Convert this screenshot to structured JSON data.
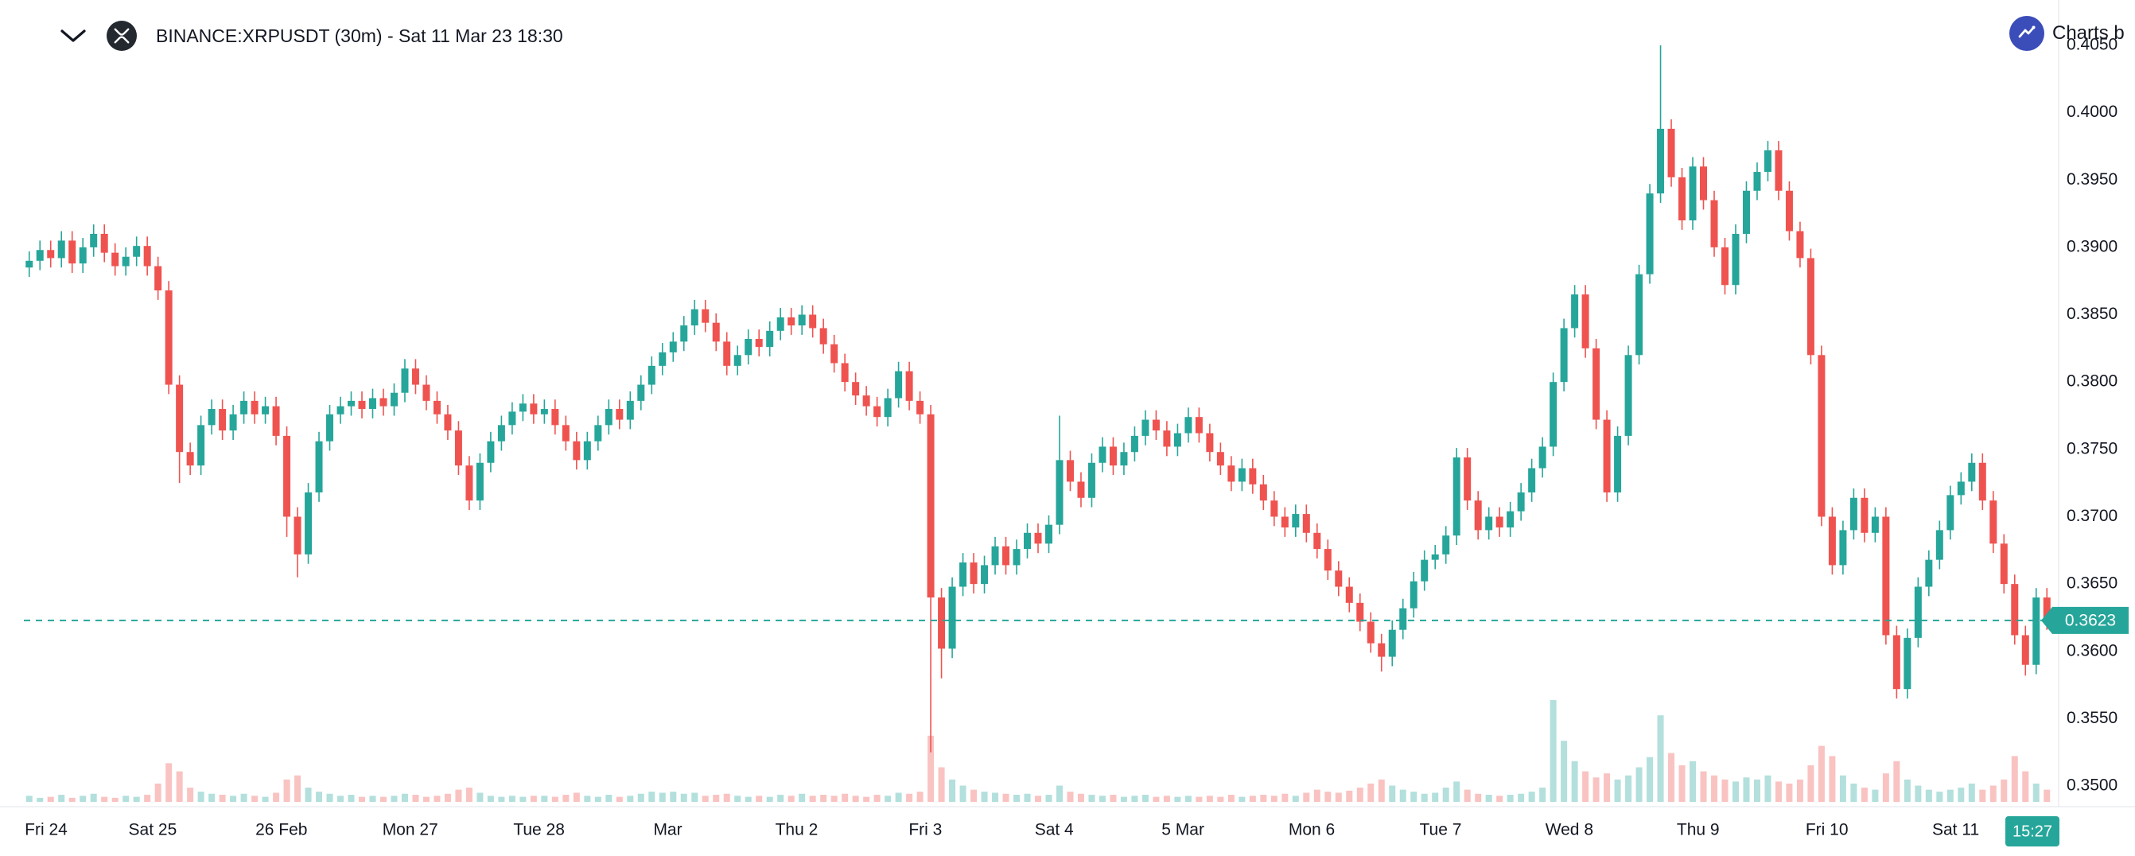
{
  "header": {
    "symbol_title": "BINANCE:XRPUSDT (30m) - Sat 11 Mar 23 18:30",
    "attribution": {
      "label": "Charts b"
    }
  },
  "price_tag": {
    "label": "0.3623"
  },
  "countdown": {
    "label": "15:27"
  },
  "colors": {
    "up": "#26a69a",
    "down": "#ef5350",
    "volume_up": "rgba(38,166,154,0.35)",
    "volume_down": "rgba(239,83,80,0.35)",
    "price_line": "#26a69a",
    "price_tag_bg": "#26a69a",
    "countdown_bg": "#26a69a",
    "axis_text": "#131722",
    "separator": "#e0e3eb",
    "attribution_logo_bg": "#3b4db9",
    "symbol_logo_bg": "#23292f"
  },
  "chart_data": {
    "type": "candlestick",
    "title": "BINANCE:XRPUSDT (30m) - Sat 11 Mar 23 18:30",
    "symbol": "BINANCE:XRPUSDT",
    "interval_label": "30m",
    "last_price": 0.3623,
    "grid": false,
    "note": "price path estimated from pixels; series downsampled to ~2h candles over Feb 24 - Mar 11",
    "y_axis": {
      "min": 0.349,
      "max": 0.406,
      "tick_step": 0.005,
      "ticks": [
        "0.4050",
        "0.4000",
        "0.3950",
        "0.3900",
        "0.3850",
        "0.3800",
        "0.3750",
        "0.3700",
        "0.3650",
        "0.3600",
        "0.3550",
        "0.3500"
      ]
    },
    "x_axis": {
      "day_labels": [
        "Fri 24",
        "Sat 25",
        "26 Feb",
        "Mon 27",
        "Tue 28",
        "Mar",
        "Thu 2",
        "Fri 3",
        "Sat 4",
        "5 Mar",
        "Mon 6",
        "Tue 7",
        "Wed 8",
        "Thu 9",
        "Fri 10",
        "Sat 11"
      ],
      "candles_per_label": 12
    },
    "price_line": {
      "value": 0.3623,
      "style": "dashed"
    },
    "series": {
      "first_open": 0.3885,
      "default_wick": 0.0007,
      "closes": [
        0.389,
        0.3898,
        0.3892,
        0.3905,
        0.3888,
        0.39,
        0.391,
        0.3896,
        0.3886,
        0.3893,
        0.3901,
        0.3886,
        0.3868,
        0.3798,
        0.3748,
        0.3738,
        0.3768,
        0.378,
        0.3764,
        0.3776,
        0.3786,
        0.3776,
        0.3782,
        0.376,
        0.37,
        0.3672,
        0.3718,
        0.3756,
        0.3776,
        0.3782,
        0.3786,
        0.378,
        0.3788,
        0.3782,
        0.3792,
        0.381,
        0.3798,
        0.3786,
        0.3776,
        0.3764,
        0.3738,
        0.3712,
        0.374,
        0.3756,
        0.3768,
        0.3778,
        0.3784,
        0.3776,
        0.378,
        0.3768,
        0.3756,
        0.3742,
        0.3756,
        0.3768,
        0.378,
        0.3772,
        0.3786,
        0.3798,
        0.3812,
        0.3822,
        0.383,
        0.3842,
        0.3854,
        0.3844,
        0.383,
        0.3812,
        0.382,
        0.3832,
        0.3826,
        0.3838,
        0.3848,
        0.3842,
        0.385,
        0.384,
        0.3828,
        0.3814,
        0.38,
        0.379,
        0.3782,
        0.3774,
        0.3788,
        0.3808,
        0.3786,
        0.3776,
        0.364,
        0.3602,
        0.3648,
        0.3666,
        0.365,
        0.3664,
        0.3678,
        0.3664,
        0.3676,
        0.3688,
        0.368,
        0.3694,
        0.3742,
        0.3726,
        0.3714,
        0.374,
        0.3752,
        0.3738,
        0.3748,
        0.376,
        0.3772,
        0.3764,
        0.3752,
        0.3762,
        0.3774,
        0.3762,
        0.3748,
        0.3738,
        0.3726,
        0.3736,
        0.3724,
        0.3712,
        0.37,
        0.3692,
        0.3702,
        0.3688,
        0.3676,
        0.366,
        0.3648,
        0.3636,
        0.3622,
        0.3606,
        0.3596,
        0.3616,
        0.3632,
        0.3652,
        0.3668,
        0.3672,
        0.3686,
        0.3744,
        0.3712,
        0.369,
        0.37,
        0.3692,
        0.3704,
        0.3718,
        0.3736,
        0.3752,
        0.38,
        0.384,
        0.3865,
        0.3825,
        0.3772,
        0.3718,
        0.376,
        0.382,
        0.388,
        0.394,
        0.3988,
        0.3952,
        0.392,
        0.396,
        0.3935,
        0.39,
        0.3872,
        0.391,
        0.3942,
        0.3956,
        0.3972,
        0.3942,
        0.3912,
        0.3892,
        0.382,
        0.37,
        0.3664,
        0.369,
        0.3714,
        0.3688,
        0.37,
        0.3612,
        0.3572,
        0.361,
        0.3648,
        0.3668,
        0.369,
        0.3716,
        0.3726,
        0.374,
        0.3712,
        0.368,
        0.365,
        0.3612,
        0.359,
        0.364,
        0.3623
      ],
      "wick_overrides": {
        "14": {
          "low": 0.3725
        },
        "24": {
          "low": 0.3685
        },
        "25": {
          "low": 0.3655
        },
        "84": {
          "low": 0.3525
        },
        "85": {
          "low": 0.358
        },
        "96": {
          "high": 0.3775
        },
        "126": {
          "low": 0.3585
        },
        "152": {
          "high": 0.405
        },
        "174": {
          "low": 0.3565
        },
        "186": {
          "low": 0.3582
        }
      },
      "volumes": [
        6,
        4,
        5,
        7,
        4,
        6,
        8,
        5,
        4,
        6,
        5,
        7,
        18,
        38,
        30,
        14,
        10,
        8,
        7,
        6,
        8,
        6,
        5,
        9,
        22,
        26,
        14,
        10,
        8,
        6,
        7,
        5,
        6,
        5,
        6,
        8,
        7,
        5,
        6,
        8,
        12,
        14,
        9,
        6,
        5,
        6,
        5,
        6,
        6,
        5,
        7,
        9,
        6,
        5,
        7,
        5,
        6,
        8,
        10,
        9,
        10,
        8,
        9,
        6,
        7,
        8,
        6,
        5,
        6,
        5,
        7,
        6,
        8,
        6,
        7,
        6,
        8,
        6,
        5,
        7,
        6,
        9,
        8,
        10,
        65,
        34,
        22,
        16,
        12,
        10,
        9,
        8,
        7,
        8,
        6,
        7,
        16,
        10,
        8,
        7,
        6,
        7,
        5,
        6,
        7,
        5,
        6,
        5,
        6,
        5,
        6,
        5,
        7,
        5,
        6,
        7,
        6,
        8,
        6,
        9,
        12,
        10,
        9,
        11,
        14,
        18,
        22,
        16,
        12,
        10,
        8,
        9,
        14,
        20,
        12,
        8,
        7,
        6,
        7,
        8,
        10,
        14,
        100,
        60,
        40,
        30,
        24,
        28,
        22,
        26,
        34,
        44,
        85,
        48,
        36,
        40,
        30,
        26,
        22,
        20,
        24,
        22,
        26,
        20,
        18,
        22,
        36,
        55,
        45,
        26,
        18,
        14,
        12,
        28,
        40,
        22,
        16,
        12,
        10,
        12,
        14,
        18,
        12,
        16,
        22,
        45,
        30,
        18,
        12
      ]
    }
  }
}
